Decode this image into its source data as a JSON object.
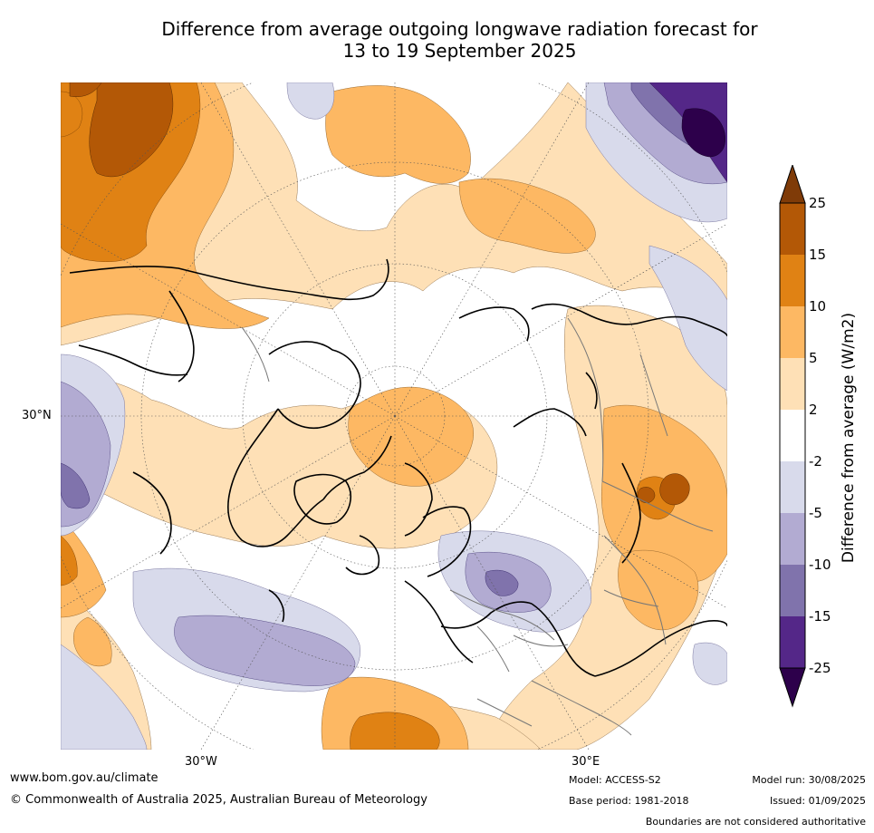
{
  "title": {
    "line1": "Difference from average outgoing longwave radiation forecast for",
    "line2": "13 to 19 September 2025"
  },
  "map": {
    "projection": "north polar stereographic",
    "lat_label_30n": "30°N",
    "lon_label_30w": "30°W",
    "lon_label_30e": "30°E"
  },
  "colorbar": {
    "title": "Difference from average (W/m2)",
    "tick_labels": [
      "25",
      "15",
      "10",
      "5",
      "2",
      "-2",
      "-5",
      "-10",
      "-15",
      "-25"
    ],
    "colors": {
      "above_25": "#7f3b08",
      "15_to_25": "#b35806",
      "10_to_15": "#e08214",
      "5_to_10": "#fdb863",
      "2_to_5": "#fee0b6",
      "neutral": "#ffffff",
      "m5_to_m2": "#d8daeb",
      "m10_to_m5": "#b2abd2",
      "m15_to_m10": "#8073ac",
      "m25_to_m15": "#542788",
      "below_m25": "#2d004b"
    }
  },
  "footer": {
    "website": "www.bom.gov.au/climate",
    "copyright": "© Commonwealth of Australia 2025, Australian Bureau of Meteorology",
    "model": "Model: ACCESS-S2",
    "base_period": "Base period: 1981-2018",
    "model_run": "Model run: 30/08/2025",
    "issued": "Issued: 01/09/2025",
    "disclaimer": "Boundaries are not considered authoritative"
  }
}
